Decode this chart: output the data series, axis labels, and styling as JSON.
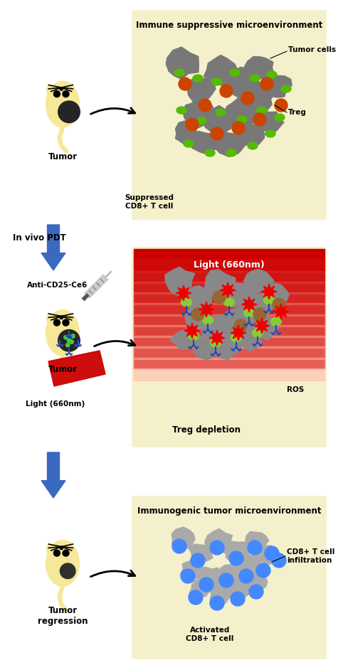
{
  "bg_color": "#ffffff",
  "panel_bg": "#f5f0cc",
  "arrow_blue": "#3a6abf",
  "tumor_cell_color": "#787878",
  "tumor_cell_color3": "#aaaaaa",
  "treg_color": "#cc4400",
  "cd8_green_color": "#55bb00",
  "cd8_blue_color": "#4488ff",
  "ros_color": "#ee0000",
  "mouse_body": "#f5e898",
  "panel1_title": "Immune suppressive microenvironment",
  "panel2_title": "Light (660nm)",
  "panel2_subtitle": "Treg depletion",
  "panel3_title": "Immunogenic tumor microenvironment",
  "label_tumor_cells": "Tumor cells",
  "label_treg": "Treg",
  "label_suppressed": "Suppressed\nCD8+ T cell",
  "label_ros": "ROS",
  "label_cd8_inf": "CD8+ T cell\ninfiltration",
  "label_activated": "Activated\nCD8+ T cell",
  "label_invivo": "In vivo PDT",
  "label_anticd25": "Anti-CD25-Ce6",
  "label_light660": "Light (660nm)",
  "label_tumor1": "Tumor",
  "label_tumor2": "Tumor",
  "label_tumor3": "Tumor\nregression"
}
